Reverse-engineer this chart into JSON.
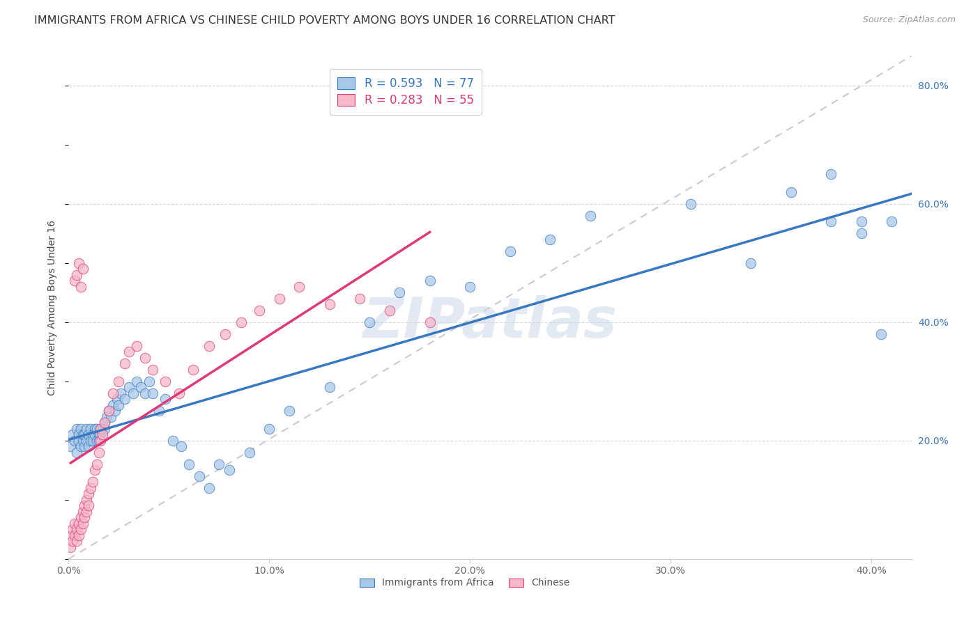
{
  "title": "IMMIGRANTS FROM AFRICA VS CHINESE CHILD POVERTY AMONG BOYS UNDER 16 CORRELATION CHART",
  "source": "Source: ZipAtlas.com",
  "ylabel": "Child Poverty Among Boys Under 16",
  "legend_line1": "R = 0.593   N = 77",
  "legend_line2": "R = 0.283   N = 55",
  "legend_labels": [
    "Immigrants from Africa",
    "Chinese"
  ],
  "blue_color": "#a8c8e8",
  "pink_color": "#f4b8c8",
  "blue_line_color": "#3878c0",
  "pink_line_color": "#e03878",
  "diag_line_color": "#d0c8c8",
  "watermark": "ZIPatlas",
  "background_color": "#ffffff",
  "grid_color": "#d8d8d8",
  "xlim": [
    0.0,
    0.42
  ],
  "ylim": [
    0.0,
    0.85
  ],
  "blue_scatter_x": [
    0.001,
    0.002,
    0.003,
    0.004,
    0.004,
    0.005,
    0.005,
    0.006,
    0.006,
    0.007,
    0.007,
    0.008,
    0.008,
    0.009,
    0.009,
    0.01,
    0.01,
    0.011,
    0.011,
    0.012,
    0.012,
    0.013,
    0.013,
    0.014,
    0.014,
    0.015,
    0.015,
    0.016,
    0.016,
    0.017,
    0.018,
    0.018,
    0.019,
    0.02,
    0.021,
    0.022,
    0.023,
    0.024,
    0.025,
    0.026,
    0.028,
    0.03,
    0.032,
    0.034,
    0.036,
    0.038,
    0.04,
    0.042,
    0.045,
    0.048,
    0.052,
    0.056,
    0.06,
    0.065,
    0.07,
    0.075,
    0.08,
    0.09,
    0.1,
    0.11,
    0.13,
    0.15,
    0.165,
    0.18,
    0.2,
    0.22,
    0.24,
    0.26,
    0.31,
    0.34,
    0.36,
    0.38,
    0.395,
    0.405,
    0.41,
    0.395,
    0.38
  ],
  "blue_scatter_y": [
    0.19,
    0.21,
    0.2,
    0.22,
    0.18,
    0.21,
    0.2,
    0.19,
    0.22,
    0.2,
    0.21,
    0.19,
    0.21,
    0.2,
    0.22,
    0.21,
    0.19,
    0.2,
    0.22,
    0.21,
    0.2,
    0.22,
    0.21,
    0.2,
    0.22,
    0.21,
    0.2,
    0.22,
    0.21,
    0.22,
    0.23,
    0.22,
    0.24,
    0.25,
    0.24,
    0.26,
    0.25,
    0.27,
    0.26,
    0.28,
    0.27,
    0.29,
    0.28,
    0.3,
    0.29,
    0.28,
    0.3,
    0.28,
    0.25,
    0.27,
    0.2,
    0.19,
    0.16,
    0.14,
    0.12,
    0.16,
    0.15,
    0.18,
    0.22,
    0.25,
    0.29,
    0.4,
    0.45,
    0.47,
    0.46,
    0.52,
    0.54,
    0.58,
    0.6,
    0.5,
    0.62,
    0.65,
    0.57,
    0.38,
    0.57,
    0.55,
    0.57
  ],
  "pink_scatter_x": [
    0.001,
    0.001,
    0.002,
    0.002,
    0.003,
    0.003,
    0.004,
    0.004,
    0.005,
    0.005,
    0.006,
    0.006,
    0.007,
    0.007,
    0.008,
    0.008,
    0.009,
    0.009,
    0.01,
    0.01,
    0.011,
    0.012,
    0.013,
    0.014,
    0.015,
    0.016,
    0.016,
    0.017,
    0.018,
    0.02,
    0.022,
    0.025,
    0.028,
    0.03,
    0.034,
    0.038,
    0.042,
    0.048,
    0.055,
    0.062,
    0.07,
    0.078,
    0.086,
    0.095,
    0.105,
    0.115,
    0.13,
    0.145,
    0.16,
    0.18,
    0.003,
    0.004,
    0.005,
    0.006,
    0.007
  ],
  "pink_scatter_y": [
    0.02,
    0.04,
    0.03,
    0.05,
    0.04,
    0.06,
    0.05,
    0.03,
    0.06,
    0.04,
    0.05,
    0.07,
    0.06,
    0.08,
    0.07,
    0.09,
    0.08,
    0.1,
    0.09,
    0.11,
    0.12,
    0.13,
    0.15,
    0.16,
    0.18,
    0.2,
    0.22,
    0.21,
    0.23,
    0.25,
    0.28,
    0.3,
    0.33,
    0.35,
    0.36,
    0.34,
    0.32,
    0.3,
    0.28,
    0.32,
    0.36,
    0.38,
    0.4,
    0.42,
    0.44,
    0.46,
    0.43,
    0.44,
    0.42,
    0.4,
    0.47,
    0.48,
    0.5,
    0.46,
    0.49
  ],
  "title_fontsize": 11.5,
  "axis_label_fontsize": 10,
  "tick_fontsize": 10,
  "legend_fontsize": 12,
  "source_fontsize": 9
}
